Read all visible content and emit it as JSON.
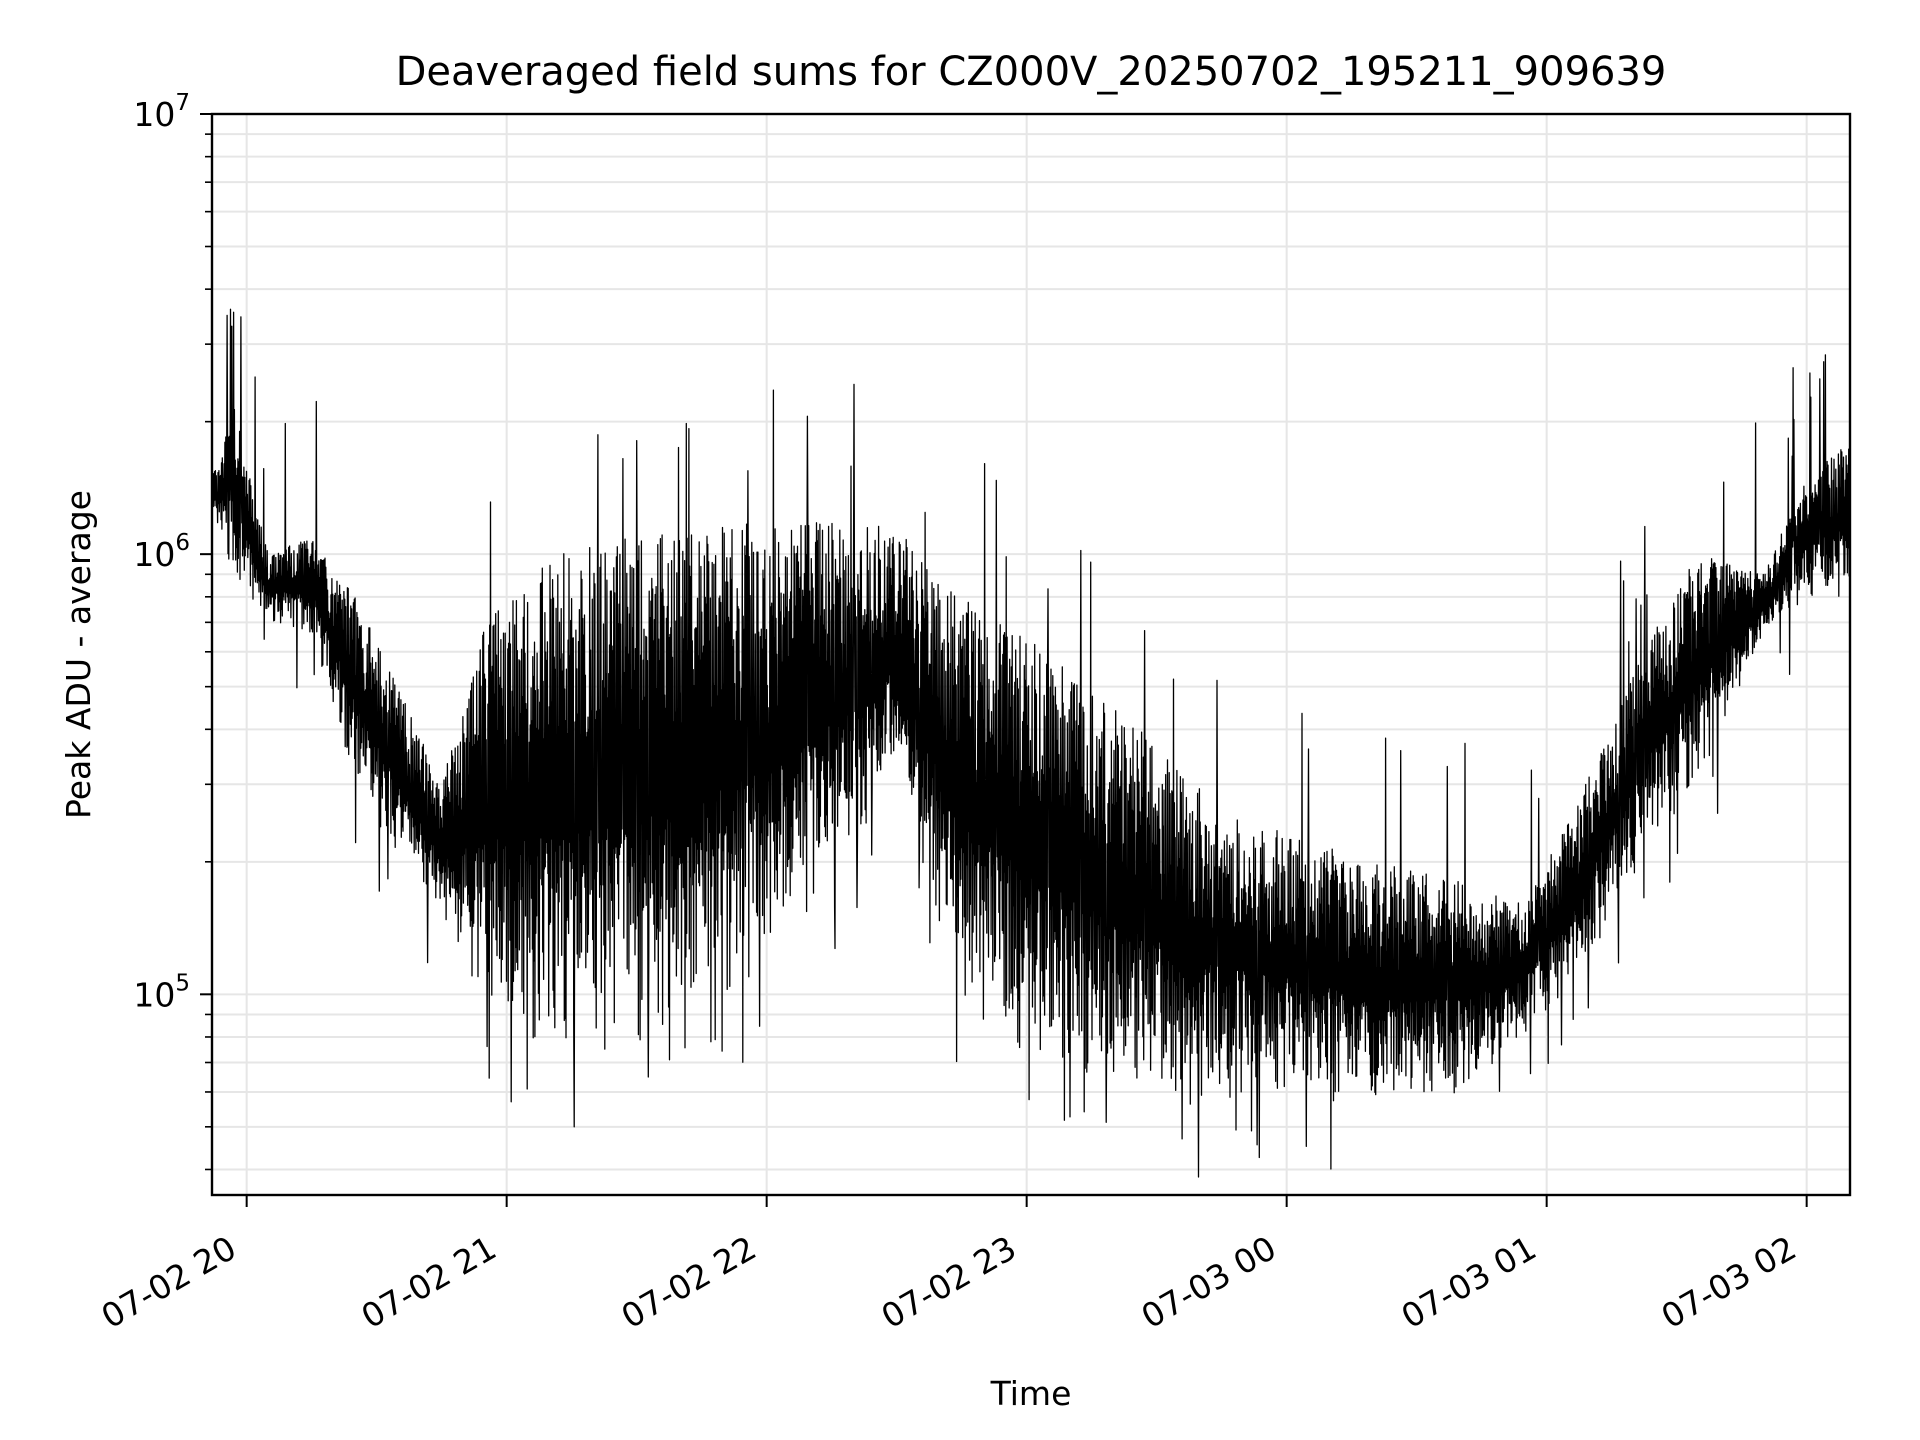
{
  "chart_data": {
    "type": "line",
    "title": "Deaveraged field sums for CZ000V_20250702_195211_909639",
    "xlabel": "Time",
    "ylabel": "Peak ADU - average",
    "y_scale": "log",
    "ylim": [
      35000,
      10000000
    ],
    "xlim": [
      "2025-07-02 19:52",
      "2025-07-03 02:10"
    ],
    "grid": true,
    "line_color": "#000000",
    "grid_color": "#e6e6e6",
    "x_ticks": [
      {
        "value": "2025-07-02 20:00",
        "label": "07-02 20"
      },
      {
        "value": "2025-07-02 21:00",
        "label": "07-02 21"
      },
      {
        "value": "2025-07-02 22:00",
        "label": "07-02 22"
      },
      {
        "value": "2025-07-02 23:00",
        "label": "07-02 23"
      },
      {
        "value": "2025-07-03 00:00",
        "label": "07-03 00"
      },
      {
        "value": "2025-07-03 01:00",
        "label": "07-03 01"
      },
      {
        "value": "2025-07-03 02:00",
        "label": "07-03 02"
      }
    ],
    "y_ticks": [
      {
        "value": 100000,
        "base": "10",
        "exp": "5"
      },
      {
        "value": 1000000,
        "base": "10",
        "exp": "6"
      },
      {
        "value": 10000000,
        "base": "10",
        "exp": "7"
      }
    ],
    "series": [
      {
        "envelope": {
          "x": [
            "2025-07-02 19:52",
            "2025-07-02 19:57",
            "2025-07-02 20:05",
            "2025-07-02 20:15",
            "2025-07-02 20:25",
            "2025-07-02 20:35",
            "2025-07-02 20:45",
            "2025-07-02 20:55",
            "2025-07-02 21:10",
            "2025-07-02 21:30",
            "2025-07-02 22:00",
            "2025-07-02 22:30",
            "2025-07-02 22:45",
            "2025-07-02 23:00",
            "2025-07-02 23:20",
            "2025-07-02 23:40",
            "2025-07-03 00:00",
            "2025-07-03 00:20",
            "2025-07-03 00:40",
            "2025-07-03 00:55",
            "2025-07-03 01:05",
            "2025-07-03 01:15",
            "2025-07-03 01:25",
            "2025-07-03 01:35",
            "2025-07-03 01:50",
            "2025-07-03 02:00",
            "2025-07-03 02:10"
          ],
          "upper": [
            1500000,
            2200000,
            1000000,
            1100000,
            800000,
            500000,
            300000,
            700000,
            1000000,
            1100000,
            1200000,
            1150000,
            800000,
            650000,
            450000,
            300000,
            230000,
            200000,
            180000,
            160000,
            250000,
            400000,
            700000,
            1000000,
            900000,
            1500000,
            1800000
          ],
          "lower": [
            1200000,
            900000,
            700000,
            650000,
            300000,
            200000,
            150000,
            90000,
            70000,
            75000,
            110000,
            300000,
            90000,
            70000,
            60000,
            55000,
            60000,
            55000,
            60000,
            80000,
            100000,
            150000,
            220000,
            300000,
            650000,
            800000,
            800000
          ]
        }
      }
    ]
  }
}
